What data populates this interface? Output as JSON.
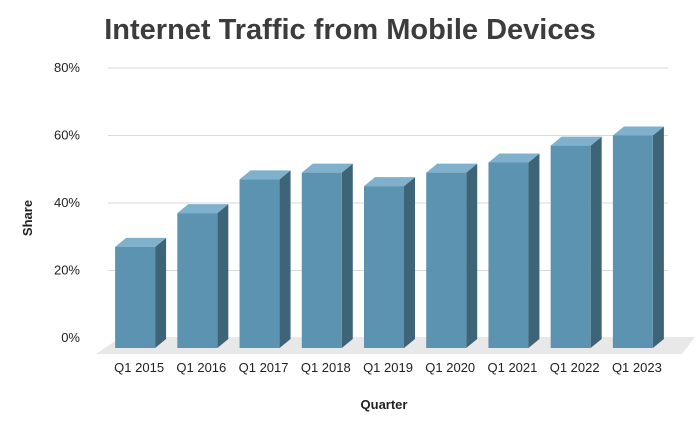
{
  "chart_data": {
    "type": "bar",
    "title": "Internet Traffic from Mobile Devices",
    "xlabel": "Quarter",
    "ylabel": "Share",
    "categories": [
      "Q1 2015",
      "Q1 2016",
      "Q1 2017",
      "Q1 2018",
      "Q1 2019",
      "Q1 2020",
      "Q1 2021",
      "Q1 2022",
      "Q1 2023"
    ],
    "values": [
      27,
      37,
      47,
      49,
      45,
      49,
      52,
      57,
      60
    ],
    "ylim": [
      0,
      80
    ],
    "yticks": [
      0,
      20,
      40,
      60,
      80
    ],
    "ytick_suffix": "%",
    "grid": true,
    "legend": "none",
    "colors": {
      "bar_front": "#5b93b0",
      "bar_top": "#7fb1cc",
      "bar_side": "#3e6478",
      "floor": "#e8e8e8",
      "grid": "#d9d9d9"
    }
  }
}
